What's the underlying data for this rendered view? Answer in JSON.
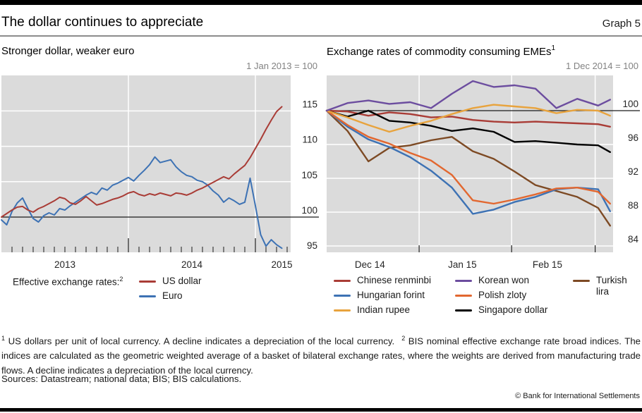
{
  "header": {
    "title": "The dollar continues to appreciate",
    "graph_label": "Graph 5"
  },
  "panels": [
    {
      "subtitle": "Stronger dollar, weaker euro",
      "subtitle_sup": "",
      "index_note": "1 Jan 2013 = 100",
      "legend_label": "Effective exchange rates:",
      "legend_label_sup": "2"
    },
    {
      "subtitle": "Exchange rates of commodity consuming EMEs",
      "subtitle_sup": "1",
      "index_note": "1 Dec 2014 = 100"
    }
  ],
  "colors": {
    "plot_background": "#dbdbdb",
    "gridline": "#ffffff",
    "baseline": "#1a1a1a",
    "page_bars": "#000000",
    "title_rule": "#8c8c8c"
  },
  "chart_data": [
    {
      "type": "line",
      "title": "Stronger dollar, weaker euro",
      "index_note": "1 Jan 2013 = 100",
      "x_unit": "months since 1 Jan 2013",
      "x": [
        0,
        0.5,
        1,
        1.5,
        2,
        2.5,
        3,
        3.5,
        4,
        4.5,
        5,
        5.5,
        6,
        6.5,
        7,
        7.5,
        8,
        8.5,
        9,
        9.5,
        10,
        10.5,
        11,
        11.5,
        12,
        12.5,
        13,
        13.5,
        14,
        14.5,
        15,
        15.5,
        16,
        16.5,
        17,
        17.5,
        18,
        18.5,
        19,
        19.5,
        20,
        20.5,
        21,
        21.5,
        22,
        22.5,
        23,
        23.5,
        24,
        24.5,
        25,
        25.5,
        26,
        26.5
      ],
      "series": [
        {
          "name": "US dollar",
          "color": "#a93c36",
          "values": [
            100.0,
            100.5,
            101.0,
            101.4,
            101.5,
            101.0,
            100.7,
            101.2,
            101.5,
            101.9,
            102.3,
            102.8,
            102.6,
            102.0,
            101.8,
            102.3,
            102.9,
            102.3,
            101.7,
            101.9,
            102.2,
            102.5,
            102.7,
            103.0,
            103.4,
            103.6,
            103.2,
            103.0,
            103.3,
            103.1,
            103.4,
            103.2,
            103.0,
            103.4,
            103.3,
            103.1,
            103.4,
            103.8,
            104.1,
            104.5,
            104.9,
            105.3,
            105.7,
            105.4,
            106.1,
            106.7,
            107.3,
            108.4,
            109.7,
            111.0,
            112.4,
            113.7,
            114.9,
            115.6
          ]
        },
        {
          "name": "Euro",
          "color": "#3d72b4",
          "values": [
            99.6,
            98.9,
            100.8,
            102.0,
            102.7,
            101.2,
            99.8,
            99.3,
            100.2,
            100.6,
            100.3,
            101.2,
            101.0,
            101.6,
            102.1,
            102.6,
            103.1,
            103.5,
            103.2,
            104.1,
            103.8,
            104.5,
            104.8,
            105.2,
            105.6,
            105.1,
            105.9,
            106.6,
            107.4,
            108.5,
            107.7,
            107.9,
            108.1,
            107.1,
            106.4,
            105.9,
            105.7,
            105.2,
            105.0,
            104.5,
            103.7,
            103.1,
            102.1,
            102.7,
            102.3,
            101.8,
            102.1,
            105.5,
            101.6,
            97.5,
            95.9,
            96.8,
            96.1,
            95.6
          ]
        }
      ],
      "draw_order": [
        1,
        0
      ],
      "ylim": [
        95,
        120.1
      ],
      "yticks": [
        95,
        100,
        105,
        110,
        115
      ],
      "baseline": 100,
      "vgrid": [
        12,
        24
      ],
      "xticks_minor": [
        1,
        2,
        3,
        4,
        5,
        6,
        7,
        8,
        9,
        10,
        11,
        13,
        14,
        15,
        16,
        17,
        18,
        19,
        20,
        21,
        22,
        23,
        25,
        26,
        27
      ],
      "xticks_major": [
        12,
        24
      ],
      "xlabels": [
        {
          "pos": 6,
          "label": "2013"
        },
        {
          "pos": 18,
          "label": "2014"
        },
        {
          "pos": 26.5,
          "label": "2015"
        }
      ],
      "grid": true,
      "legend_position": "below"
    },
    {
      "type": "line",
      "title": "Exchange rates of commodity consuming EMEs",
      "index_note": "1 Dec 2014 = 100",
      "x_unit": "days since 1 Dec 2014",
      "x": [
        0,
        7,
        14,
        21,
        28,
        35,
        42,
        49,
        56,
        63,
        70,
        77,
        84,
        91,
        95
      ],
      "series": [
        {
          "name": "Chinese renminbi",
          "color": "#a93c36",
          "values": [
            100,
            99.9,
            99.4,
            99.8,
            99.6,
            99.2,
            99.3,
            98.9,
            98.7,
            98.6,
            98.7,
            98.6,
            98.5,
            98.4,
            98.1
          ]
        },
        {
          "name": "Hungarian forint",
          "color": "#3d72b4",
          "values": [
            100,
            98.1,
            96.6,
            95.7,
            94.5,
            92.9,
            90.9,
            87.8,
            88.3,
            89.2,
            89.8,
            90.7,
            90.9,
            90.7,
            88.1
          ]
        },
        {
          "name": "Indian rupee",
          "color": "#e8a33d",
          "values": [
            100,
            99.2,
            98.3,
            97.5,
            98.2,
            98.8,
            99.6,
            100.3,
            100.7,
            100.5,
            100.3,
            99.7,
            100.1,
            100.0,
            99.4
          ]
        },
        {
          "name": "Korean won",
          "color": "#6c4d9f",
          "values": [
            100,
            100.9,
            101.2,
            100.8,
            101.0,
            100.3,
            102.0,
            103.5,
            102.8,
            103.0,
            102.6,
            100.3,
            101.4,
            100.6,
            101.3
          ]
        },
        {
          "name": "Polish zloty",
          "color": "#e2672f",
          "values": [
            100,
            98.3,
            96.9,
            96.1,
            95.0,
            94.1,
            92.4,
            89.4,
            89.0,
            89.5,
            90.1,
            90.8,
            90.9,
            90.4,
            89.0
          ]
        },
        {
          "name": "Singapore dollar",
          "color": "#000000",
          "values": [
            100,
            99.3,
            100.0,
            98.8,
            98.6,
            98.2,
            97.6,
            97.9,
            97.5,
            96.3,
            96.4,
            96.2,
            96.0,
            95.9,
            95.1
          ]
        },
        {
          "name": "Turkish lira",
          "color": "#7d4a24",
          "values": [
            100,
            97.6,
            94.0,
            95.6,
            95.9,
            96.5,
            96.9,
            95.2,
            94.3,
            92.8,
            91.2,
            90.5,
            89.8,
            88.5,
            86.4
          ]
        }
      ],
      "draw_order": [
        0,
        5,
        6,
        1,
        4,
        2,
        3
      ],
      "ylim": [
        83.3,
        104.2
      ],
      "yticks": [
        84,
        88,
        92,
        96,
        100
      ],
      "baseline": 100,
      "vgrid": [
        31,
        62,
        90
      ],
      "xticks_minor": [],
      "xticks_major": [
        31,
        62,
        90
      ],
      "xlabels": [
        {
          "pos": 14.5,
          "label": "Dec 14"
        },
        {
          "pos": 45.5,
          "label": "Jan 15"
        },
        {
          "pos": 74,
          "label": "Feb 15"
        }
      ],
      "grid": true,
      "legend_position": "below"
    }
  ],
  "legend_right_columns": [
    [
      0,
      1,
      2
    ],
    [
      3,
      4,
      5
    ],
    [
      6
    ]
  ],
  "footnotes": [
    {
      "marker": "1",
      "text": "US dollars per unit of local currency. A decline indicates a depreciation of the local currency."
    },
    {
      "marker": "2",
      "text": "BIS nominal effective exchange rate broad indices. The indices are calculated as the geometric weighted average of a basket of bilateral exchange rates, where the weights are derived from manufacturing trade flows. A decline indicates a depreciation of the local currency."
    }
  ],
  "sources": "Sources: Datastream; national data; BIS; BIS calculations.",
  "copyright": "© Bank for International Settlements"
}
